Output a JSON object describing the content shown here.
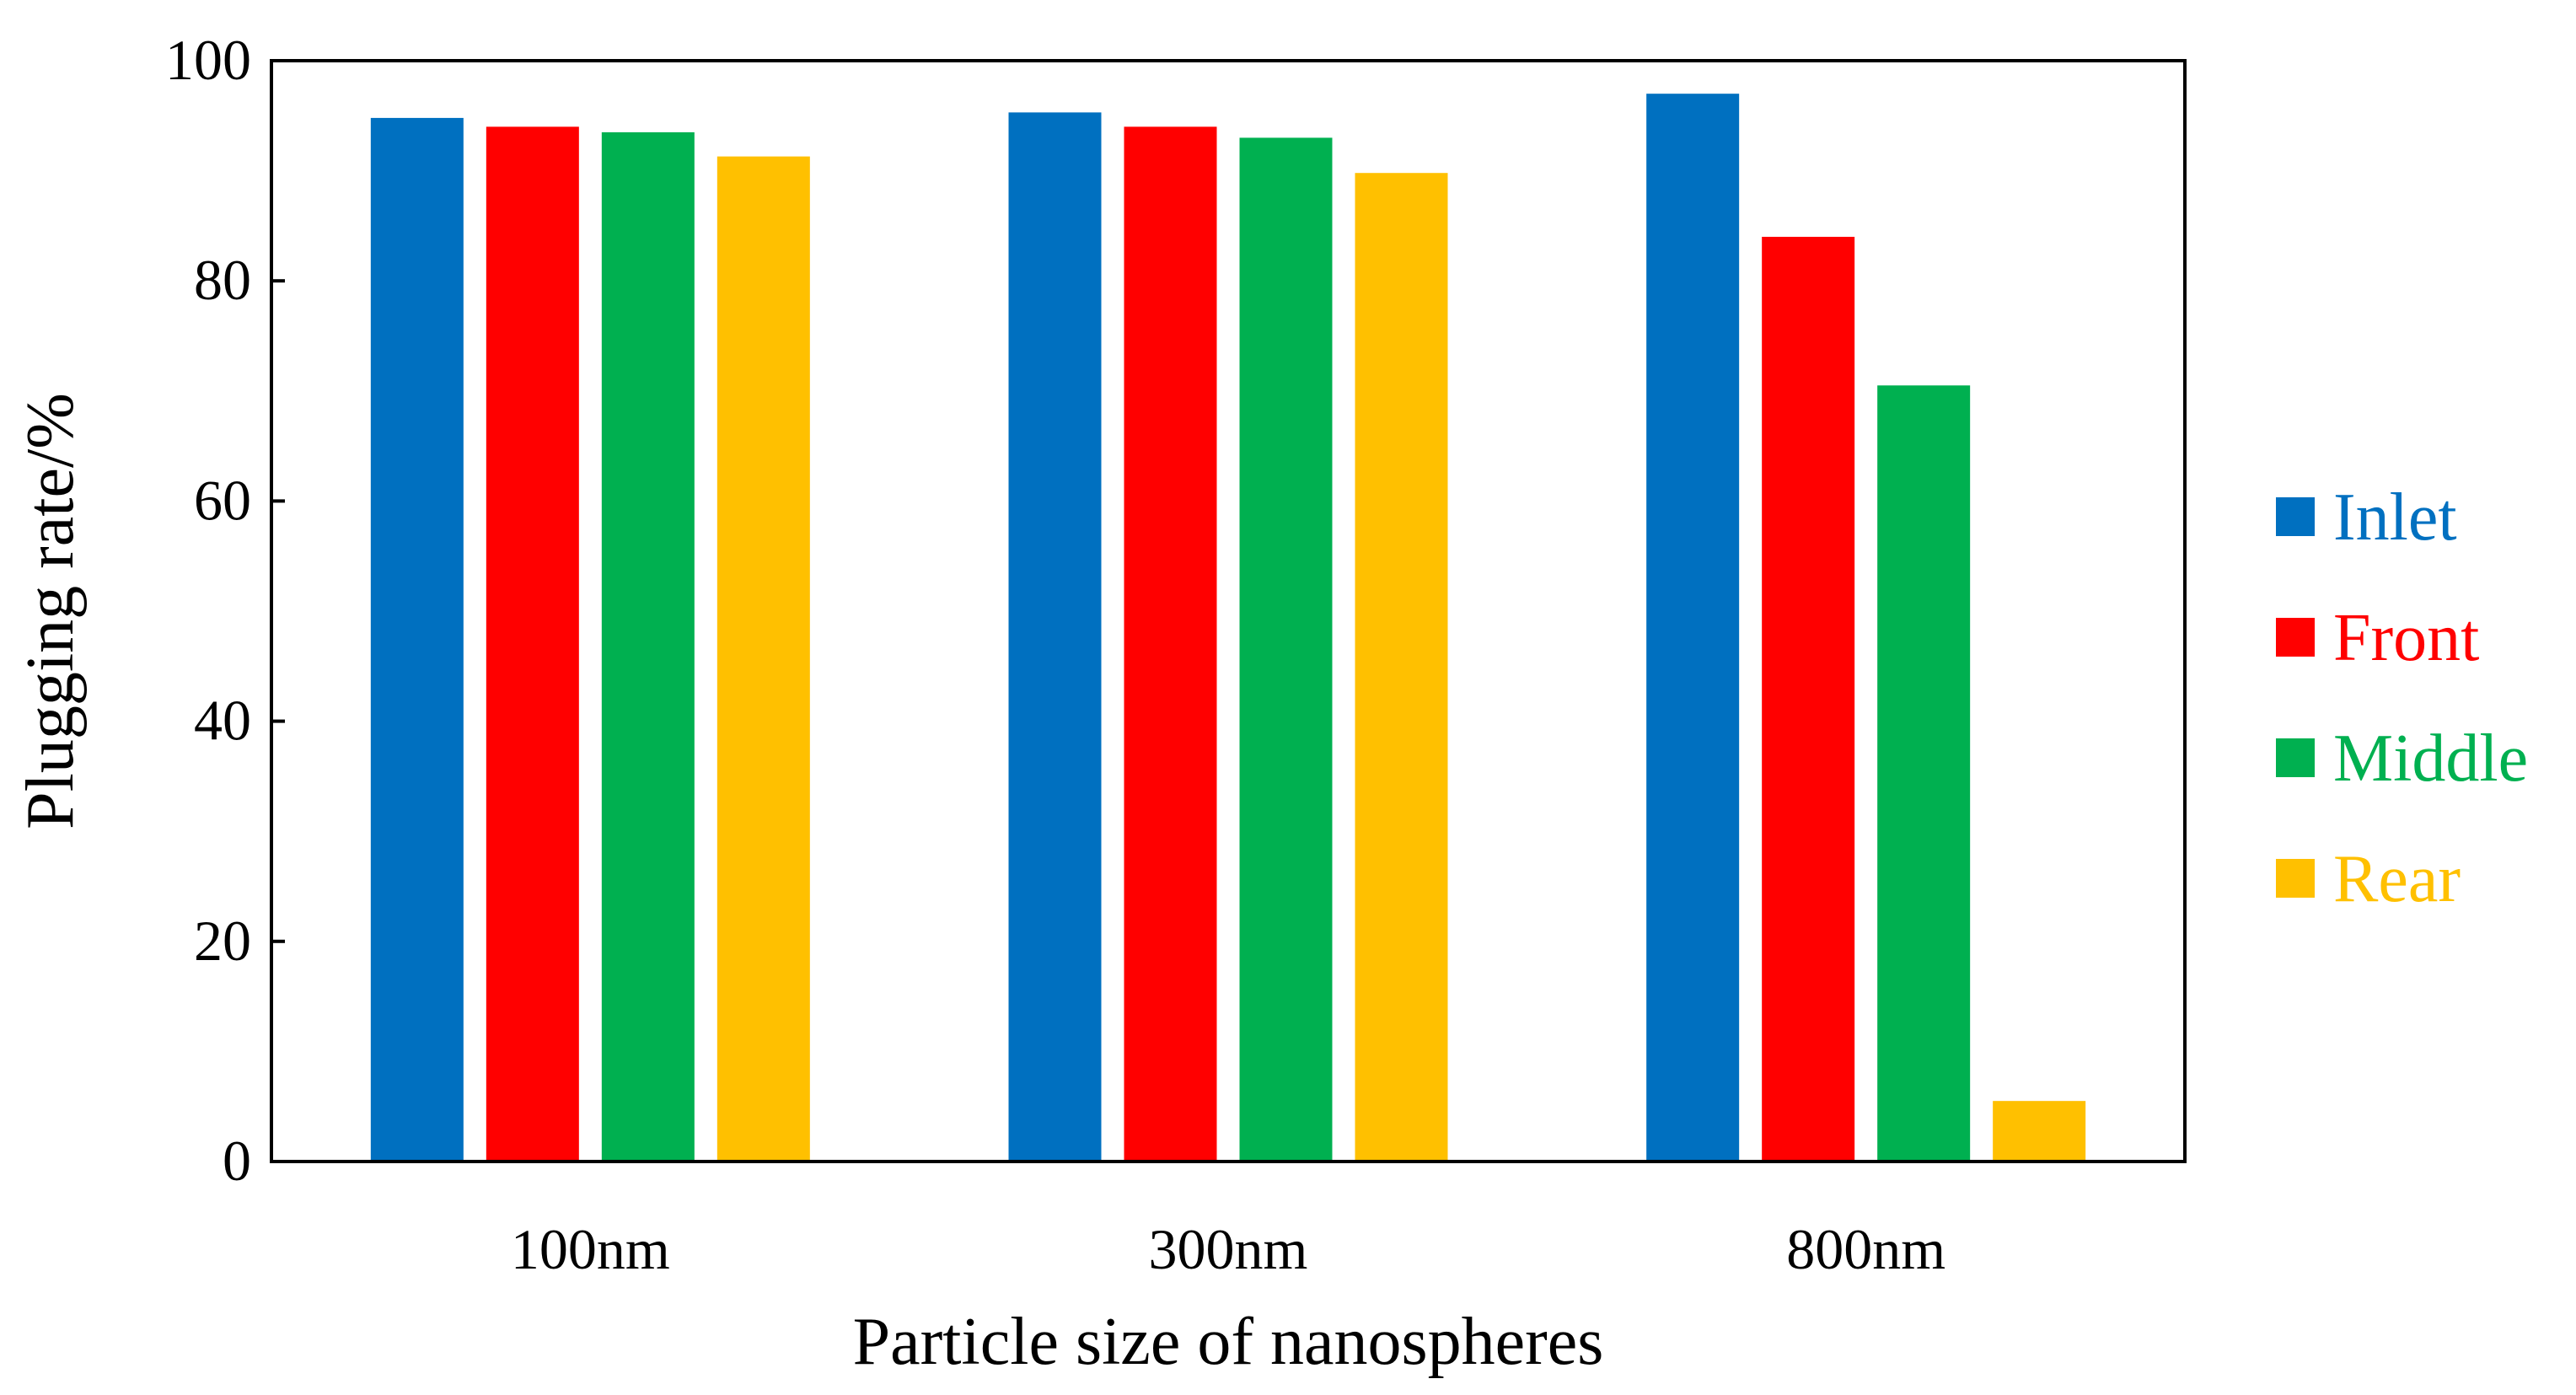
{
  "chart_data": {
    "type": "bar",
    "title": "",
    "xlabel": "Particle size of nanospheres",
    "ylabel": "Plugging rate/%",
    "categories": [
      "100nm",
      "300nm",
      "800nm"
    ],
    "series": [
      {
        "name": "Inlet",
        "color": "#0070C0",
        "values": [
          94.8,
          95.3,
          97.0
        ]
      },
      {
        "name": "Front",
        "color": "#FF0000",
        "values": [
          94.0,
          94.0,
          84.0
        ]
      },
      {
        "name": "Middle",
        "color": "#00B050",
        "values": [
          93.5,
          93.0,
          70.5
        ]
      },
      {
        "name": "Rear",
        "color": "#FFC000",
        "values": [
          91.3,
          89.8,
          5.5
        ]
      }
    ],
    "ylim": [
      0,
      100
    ],
    "yticks": [
      0,
      20,
      40,
      60,
      80,
      100
    ],
    "grid": false,
    "legend_position": "right"
  }
}
